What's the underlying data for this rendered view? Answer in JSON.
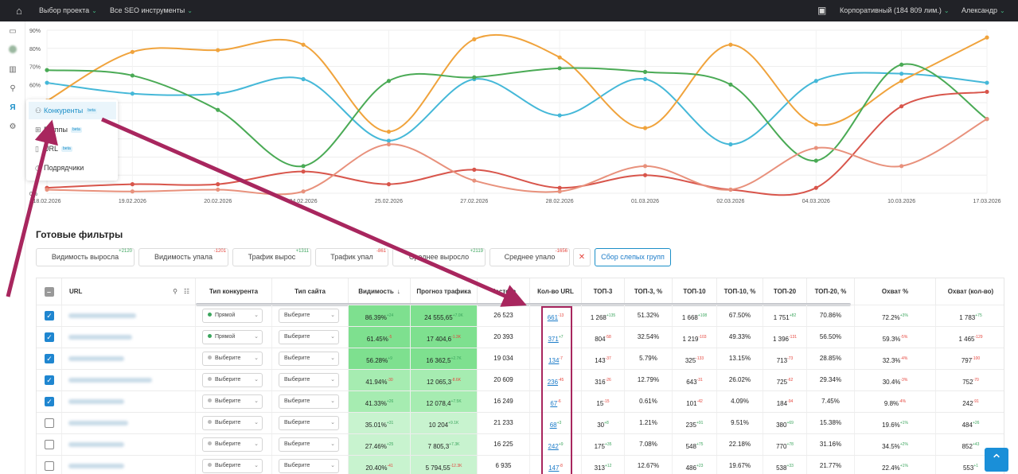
{
  "topbar": {
    "project_label": "Выбор проекта",
    "tools_label": "Все SEO инструменты",
    "plan_label": "Корпоративный (184 809 лим.)",
    "user_label": "Александр"
  },
  "menu": {
    "items": [
      {
        "label": "Конкуренты",
        "badge": "beta",
        "icon": "users-icon"
      },
      {
        "label": "Группы",
        "badge": "beta",
        "icon": "grid-icon"
      },
      {
        "label": "URL",
        "badge": "beta",
        "icon": "page-icon"
      },
      {
        "label": "Подрядчики",
        "badge": "",
        "icon": "clock-icon"
      }
    ]
  },
  "chart_data": {
    "type": "line",
    "x": [
      "18.02.2026",
      "19.02.2026",
      "20.02.2026",
      "24.02.2026",
      "25.02.2026",
      "27.02.2026",
      "28.02.2026",
      "01.03.2026",
      "02.03.2026",
      "04.03.2026",
      "10.03.2026",
      "17.03.2026"
    ],
    "y_ticks": [
      "0%",
      "",
      "",
      "",
      "",
      "",
      "60%",
      "70%",
      "80%",
      "90%"
    ],
    "ylim": [
      0,
      90
    ],
    "series": [
      {
        "color": "#45b8d8",
        "values": [
          61,
          55,
          55,
          63,
          29,
          63,
          43,
          63,
          27,
          62,
          66,
          61
        ]
      },
      {
        "color": "#f0a33c",
        "values": [
          51,
          78,
          79,
          82,
          34,
          85,
          75,
          36,
          82,
          38,
          62,
          86
        ]
      },
      {
        "color": "#4aaa55",
        "values": [
          68,
          65,
          46,
          15,
          62,
          64,
          69,
          67,
          60,
          18,
          71,
          41
        ]
      },
      {
        "color": "#d8554b",
        "values": [
          3,
          5,
          5,
          12,
          5,
          13,
          3,
          10,
          2,
          3,
          48,
          56
        ]
      },
      {
        "color": "#e8917c",
        "values": [
          2,
          1,
          2,
          1,
          27,
          7,
          1,
          15,
          2,
          25,
          15,
          41
        ]
      }
    ]
  },
  "section_title": "Готовые фильтры",
  "filters": [
    {
      "label": "Видимость выросла",
      "delta": "+2120",
      "tone": "pos"
    },
    {
      "label": "Видимость упала",
      "delta": "-1201",
      "tone": "neg"
    },
    {
      "label": "Трафик вырос",
      "delta": "+1311",
      "tone": "pos"
    },
    {
      "label": "Трафик упал",
      "delta": "-861",
      "tone": "neg"
    },
    {
      "label": "Среднее выросло",
      "delta": "+2119",
      "tone": "pos"
    },
    {
      "label": "Среднее упало",
      "delta": "-1656",
      "tone": "neg"
    }
  ],
  "blind_groups_label": "Сбор слепых групп",
  "columns": {
    "url": "URL",
    "competitor_type": "Тип конкурента",
    "site_type": "Тип сайта",
    "visibility": "Видимость",
    "forecast": "Прогноз трафика",
    "frequency": "Частота",
    "url_count": "Кол-во URL",
    "top3": "ТОП-3",
    "top3_pct": "ТОП-3, %",
    "top10": "ТОП-10",
    "top10_pct": "ТОП-10, %",
    "top20": "ТОП-20",
    "top20_pct": "ТОП-20, %",
    "reach_pct": "Охват %",
    "reach_count": "Охват (кол-во)"
  },
  "rows": [
    {
      "checked": true,
      "ctype": "Прямой",
      "stype": "Выберите",
      "vis": "86.39%",
      "vis_d": "+24",
      "vis_t": "pos",
      "fc": "24 555,65",
      "fc_d": "+7.0K",
      "fc_t": "pos",
      "freq": "26 523",
      "urls": "661",
      "urls_d": "-13",
      "urls_t": "neg",
      "t3": "1 268",
      "t3_d": "+135",
      "t3_t": "pos",
      "t3p": "51.32%",
      "t10": "1 668",
      "t10_d": "+108",
      "t10_t": "pos",
      "t10p": "67.50%",
      "t20": "1 751",
      "t20_d": "+82",
      "t20_t": "pos",
      "t20p": "70.86%",
      "rp": "72.2%",
      "rp_d": "+3%",
      "rp_t": "pos",
      "rc": "1 783",
      "rc_d": "+75",
      "rc_t": "pos"
    },
    {
      "checked": true,
      "ctype": "Прямой",
      "stype": "Выберите",
      "vis": "61.45%",
      "vis_d": "-5",
      "vis_t": "neg",
      "fc": "17 404,6",
      "fc_d": "-1.3K",
      "fc_t": "neg",
      "freq": "20 393",
      "urls": "371",
      "urls_d": "+7",
      "urls_t": "pos",
      "t3": "804",
      "t3_d": "-58",
      "t3_t": "neg",
      "t3p": "32.54%",
      "t10": "1 219",
      "t10_d": "-103",
      "t10_t": "neg",
      "t10p": "49.33%",
      "t20": "1 396",
      "t20_d": "-131",
      "t20_t": "neg",
      "t20p": "56.50%",
      "rp": "59.3%",
      "rp_d": "-5%",
      "rp_t": "neg",
      "rc": "1 465",
      "rc_d": "-129",
      "rc_t": "neg"
    },
    {
      "checked": true,
      "ctype": "Выберите",
      "stype": "Выберите",
      "vis": "56.28%",
      "vis_d": "+9",
      "vis_t": "pos",
      "fc": "16 362,5",
      "fc_d": "+2.7K",
      "fc_t": "pos",
      "freq": "19 034",
      "urls": "134",
      "urls_d": "-7",
      "urls_t": "neg",
      "t3": "143",
      "t3_d": "-37",
      "t3_t": "neg",
      "t3p": "5.79%",
      "t10": "325",
      "t10_d": "-133",
      "t10_t": "neg",
      "t10p": "13.15%",
      "t20": "713",
      "t20_d": "-73",
      "t20_t": "neg",
      "t20p": "28.85%",
      "rp": "32.3%",
      "rp_d": "-4%",
      "rp_t": "neg",
      "rc": "797",
      "rc_d": "-100",
      "rc_t": "neg"
    },
    {
      "checked": true,
      "ctype": "Выберите",
      "stype": "Выберите",
      "vis": "41.94%",
      "vis_d": "-30",
      "vis_t": "neg",
      "fc": "12 065,3",
      "fc_d": "-8.6K",
      "fc_t": "neg",
      "freq": "20 609",
      "urls": "236",
      "urls_d": "-45",
      "urls_t": "neg",
      "t3": "316",
      "t3_d": "-26",
      "t3_t": "neg",
      "t3p": "12.79%",
      "t10": "643",
      "t10_d": "-31",
      "t10_t": "neg",
      "t10p": "26.02%",
      "t20": "725",
      "t20_d": "-62",
      "t20_t": "neg",
      "t20p": "29.34%",
      "rp": "30.4%",
      "rp_d": "-3%",
      "rp_t": "neg",
      "rc": "752",
      "rc_d": "-70",
      "rc_t": "neg"
    },
    {
      "checked": true,
      "ctype": "Выберите",
      "stype": "Выберите",
      "vis": "41.33%",
      "vis_d": "+26",
      "vis_t": "pos",
      "fc": "12 078,4",
      "fc_d": "+7.5K",
      "fc_t": "pos",
      "freq": "16 249",
      "urls": "67",
      "urls_d": "-6",
      "urls_t": "neg",
      "t3": "15",
      "t3_d": "-15",
      "t3_t": "neg",
      "t3p": "0.61%",
      "t10": "101",
      "t10_d": "-42",
      "t10_t": "neg",
      "t10p": "4.09%",
      "t20": "184",
      "t20_d": "-94",
      "t20_t": "neg",
      "t20p": "7.45%",
      "rp": "9.8%",
      "rp_d": "-4%",
      "rp_t": "neg",
      "rc": "242",
      "rc_d": "-91",
      "rc_t": "neg"
    },
    {
      "checked": false,
      "ctype": "Выберите",
      "stype": "Выберите",
      "vis": "35.01%",
      "vis_d": "+31",
      "vis_t": "pos",
      "fc": "10 204",
      "fc_d": "+9.1K",
      "fc_t": "pos",
      "freq": "21 233",
      "urls": "68",
      "urls_d": "+3",
      "urls_t": "pos",
      "t3": "30",
      "t3_d": "+8",
      "t3_t": "pos",
      "t3p": "1.21%",
      "t10": "235",
      "t10_d": "+91",
      "t10_t": "pos",
      "t10p": "9.51%",
      "t20": "380",
      "t20_d": "+69",
      "t20_t": "pos",
      "t20p": "15.38%",
      "rp": "19.6%",
      "rp_d": "+1%",
      "rp_t": "pos",
      "rc": "484",
      "rc_d": "+26",
      "rc_t": "pos"
    },
    {
      "checked": false,
      "ctype": "Выберите",
      "stype": "Выберите",
      "vis": "27.46%",
      "vis_d": "+25",
      "vis_t": "pos",
      "fc": "7 805,3",
      "fc_d": "+7.3K",
      "fc_t": "pos",
      "freq": "16 225",
      "urls": "242",
      "urls_d": "+9",
      "urls_t": "pos",
      "t3": "175",
      "t3_d": "+35",
      "t3_t": "pos",
      "t3p": "7.08%",
      "t10": "548",
      "t10_d": "+75",
      "t10_t": "pos",
      "t10p": "22.18%",
      "t20": "770",
      "t20_d": "+78",
      "t20_t": "pos",
      "t20p": "31.16%",
      "rp": "34.5%",
      "rp_d": "+2%",
      "rp_t": "pos",
      "rc": "852",
      "rc_d": "+43",
      "rc_t": "pos"
    },
    {
      "checked": false,
      "ctype": "Выберите",
      "stype": "Выберите",
      "vis": "20.40%",
      "vis_d": "-41",
      "vis_t": "neg",
      "fc": "5 794,55",
      "fc_d": "-12.3K",
      "fc_t": "neg",
      "freq": "6 935",
      "urls": "147",
      "urls_d": "-8",
      "urls_t": "neg",
      "t3": "313",
      "t3_d": "+12",
      "t3_t": "pos",
      "t3p": "12.67%",
      "t10": "486",
      "t10_d": "+23",
      "t10_t": "pos",
      "t10p": "19.67%",
      "t20": "538",
      "t20_d": "+33",
      "t20_t": "pos",
      "t20p": "21.77%",
      "rp": "22.4%",
      "rp_d": "+1%",
      "rp_t": "pos",
      "rc": "553",
      "rc_d": "+1",
      "rc_t": "pos"
    }
  ],
  "scroll_up_icon": "arrow-up-icon"
}
